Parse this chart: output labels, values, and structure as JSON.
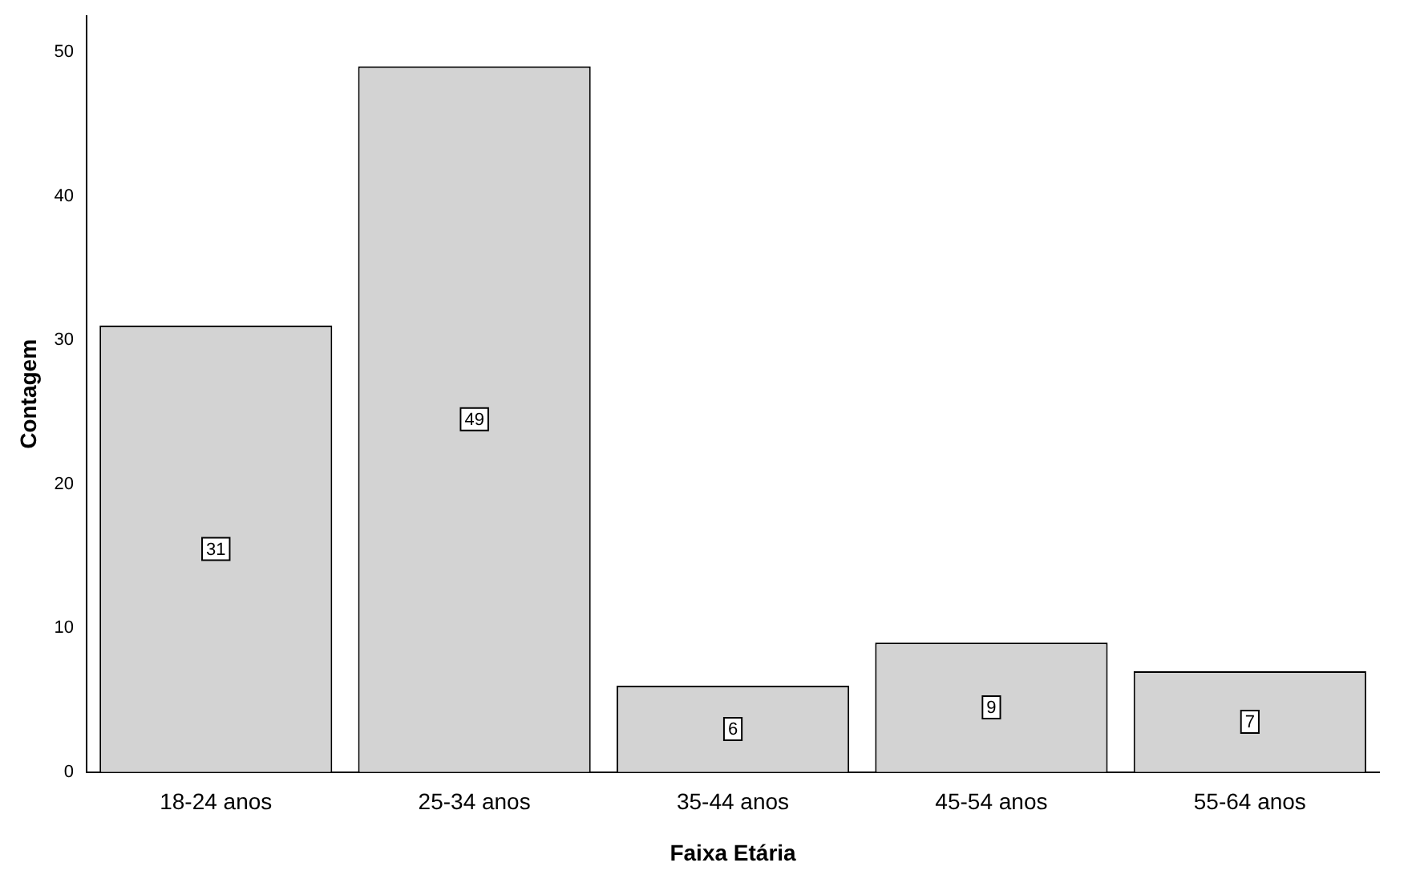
{
  "chart_data": {
    "type": "bar",
    "xlabel": "Faixa Etária",
    "ylabel": "Contagem",
    "categories": [
      "18-24 anos",
      "25-34 anos",
      "35-44 anos",
      "45-54 anos",
      "55-64 anos"
    ],
    "values": [
      31,
      49,
      6,
      9,
      7
    ],
    "color": "#d3d3d3",
    "ylim": [
      0,
      52.5
    ],
    "yticks": [
      0,
      10,
      20,
      30,
      40,
      50
    ],
    "grid": false,
    "legend": false,
    "data_labels": true
  }
}
